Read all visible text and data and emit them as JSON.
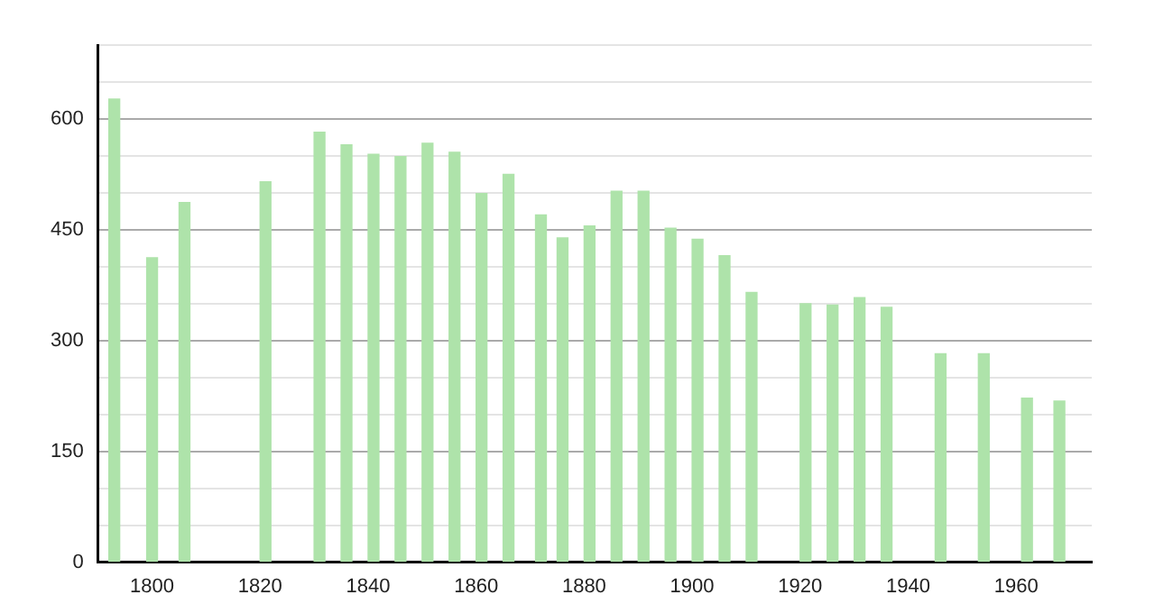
{
  "chart_data": {
    "type": "bar",
    "x": [
      1793,
      1800,
      1806,
      1821,
      1831,
      1836,
      1841,
      1846,
      1851,
      1856,
      1861,
      1866,
      1872,
      1876,
      1881,
      1886,
      1891,
      1896,
      1901,
      1906,
      1911,
      1921,
      1926,
      1931,
      1936,
      1946,
      1954,
      1962,
      1968
    ],
    "values": [
      627,
      412,
      487,
      515,
      582,
      565,
      552,
      549,
      567,
      555,
      499,
      525,
      470,
      439,
      455,
      502,
      502,
      452,
      437,
      415,
      365,
      350,
      348,
      358,
      345,
      282,
      282,
      222,
      218
    ],
    "color": "#aee3aa",
    "xlim": [
      1790,
      1974
    ],
    "xticks": [
      1800,
      1820,
      1840,
      1860,
      1880,
      1900,
      1920,
      1940,
      1960
    ],
    "ylim": [
      0,
      700
    ],
    "yticks": [
      0,
      {
        "value": 50,
        "label": null
      },
      {
        "value": 100,
        "label": null
      },
      150,
      {
        "value": 200,
        "label": null
      },
      {
        "value": 250,
        "label": null
      },
      300,
      {
        "value": 350,
        "label": null
      },
      {
        "value": 400,
        "label": null
      },
      450,
      {
        "value": 500,
        "label": null
      },
      {
        "value": 550,
        "label": null
      },
      600,
      {
        "value": 650,
        "label": null
      },
      {
        "value": 700,
        "label": null
      }
    ],
    "grid": "y",
    "legend": false
  }
}
